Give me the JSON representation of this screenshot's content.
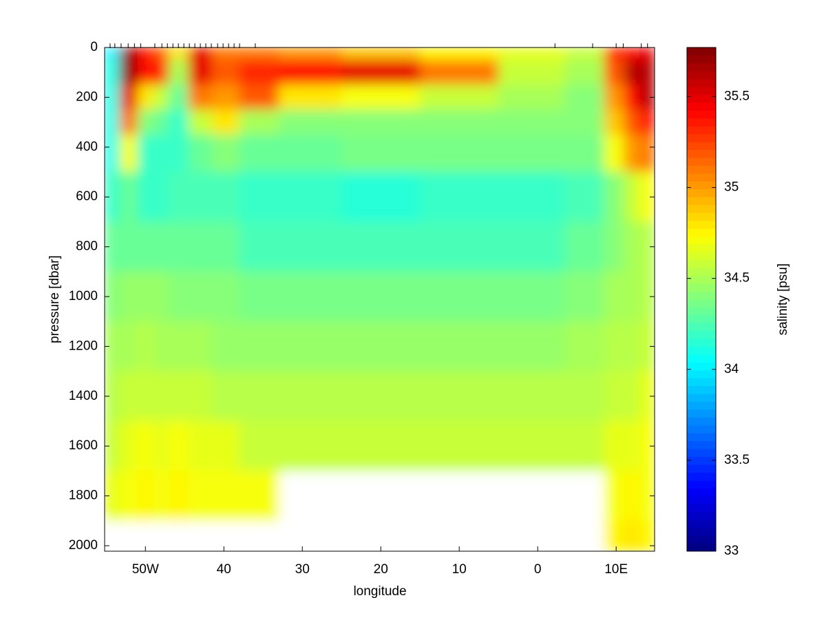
{
  "chart_data": {
    "type": "contour",
    "x_label": "longitude",
    "y_label": "pressure [dbar]",
    "colorbar_label": "salinity [psu]",
    "colormap": "jet",
    "xlim": [
      -55.2,
      14.9
    ],
    "ylim": [
      0,
      2022
    ],
    "y_reversed": true,
    "clim": [
      33,
      35.77
    ],
    "xticks": [
      {
        "value": -50,
        "label": "50W"
      },
      {
        "value": -40,
        "label": "40"
      },
      {
        "value": -30,
        "label": "30"
      },
      {
        "value": -20,
        "label": "20"
      },
      {
        "value": -10,
        "label": "10"
      },
      0,
      {
        "value": 10,
        "label": "10E"
      }
    ],
    "yticks": [
      0,
      200,
      400,
      600,
      800,
      1000,
      1200,
      1400,
      1600,
      1800,
      2000
    ],
    "cticks": [
      33,
      33.5,
      34,
      34.5,
      35,
      35.5
    ],
    "stations": [
      -54.5,
      -53.9,
      -53.1,
      -52.2,
      -51.4,
      -50.6,
      -48.8,
      -47.9,
      -47.2,
      -46.5,
      -45.8,
      -45.1,
      -44.4,
      -43.7,
      -43.0,
      -42.3,
      -41.6,
      -40.8,
      -40.1,
      -39.4,
      -38.7,
      -38.0,
      -36.0,
      2.2,
      7.0,
      10.0,
      10.9,
      13.2,
      14.0
    ],
    "x": [
      -54.5,
      -52,
      -50,
      -48,
      -46,
      -43,
      -40,
      -36,
      -30,
      -20,
      -10,
      0,
      7,
      10,
      12,
      14
    ],
    "y": [
      0,
      100,
      200,
      300,
      400,
      600,
      800,
      1000,
      1200,
      1400,
      1600,
      1800,
      2000
    ],
    "z": [
      [
        34.0,
        35.7,
        35.4,
        35.2,
        34.8,
        35.5,
        35.1,
        35.1,
        35.0,
        34.9,
        34.75,
        34.65,
        34.6,
        35.3,
        35.4,
        35.5
      ],
      [
        34.1,
        35.7,
        35.4,
        35.3,
        34.5,
        35.5,
        35.2,
        35.3,
        35.4,
        35.5,
        35.1,
        34.6,
        34.5,
        35.2,
        35.6,
        35.6
      ],
      [
        34.1,
        35.5,
        34.8,
        34.6,
        34.3,
        35.1,
        35.0,
        35.2,
        34.8,
        34.7,
        34.6,
        34.5,
        34.4,
        35.0,
        35.4,
        35.6
      ],
      [
        34.1,
        35.1,
        34.4,
        34.3,
        34.2,
        34.6,
        34.8,
        34.5,
        34.4,
        34.4,
        34.4,
        34.4,
        34.4,
        34.9,
        35.2,
        35.4
      ],
      [
        34.1,
        34.7,
        34.2,
        34.2,
        34.2,
        34.3,
        34.4,
        34.3,
        34.3,
        34.35,
        34.35,
        34.35,
        34.35,
        34.7,
        35.0,
        35.1
      ],
      [
        34.2,
        34.3,
        34.2,
        34.2,
        34.25,
        34.25,
        34.25,
        34.2,
        34.2,
        34.15,
        34.2,
        34.2,
        34.25,
        34.4,
        34.6,
        34.7
      ],
      [
        34.3,
        34.3,
        34.3,
        34.3,
        34.3,
        34.3,
        34.3,
        34.25,
        34.25,
        34.25,
        34.25,
        34.25,
        34.3,
        34.4,
        34.5,
        34.55
      ],
      [
        34.4,
        34.45,
        34.45,
        34.45,
        34.4,
        34.4,
        34.4,
        34.35,
        34.35,
        34.35,
        34.35,
        34.35,
        34.4,
        34.5,
        34.5,
        34.55
      ],
      [
        34.5,
        34.5,
        34.55,
        34.5,
        34.5,
        34.5,
        34.45,
        34.45,
        34.45,
        34.45,
        34.45,
        34.45,
        34.5,
        34.55,
        34.55,
        34.6
      ],
      [
        34.55,
        34.6,
        34.6,
        34.6,
        34.6,
        34.6,
        34.55,
        34.55,
        34.55,
        34.55,
        34.55,
        34.55,
        34.55,
        34.6,
        34.6,
        34.65
      ],
      [
        34.6,
        34.65,
        34.7,
        34.65,
        34.7,
        34.65,
        34.65,
        34.6,
        34.6,
        34.6,
        34.6,
        34.6,
        34.6,
        34.65,
        34.65,
        34.7
      ],
      [
        34.65,
        34.7,
        34.75,
        34.7,
        34.75,
        34.7,
        34.7,
        34.7,
        null,
        null,
        null,
        null,
        null,
        34.7,
        34.75,
        34.7
      ],
      [
        null,
        null,
        null,
        null,
        null,
        null,
        null,
        null,
        null,
        null,
        null,
        null,
        null,
        34.75,
        34.8,
        34.75
      ]
    ]
  }
}
